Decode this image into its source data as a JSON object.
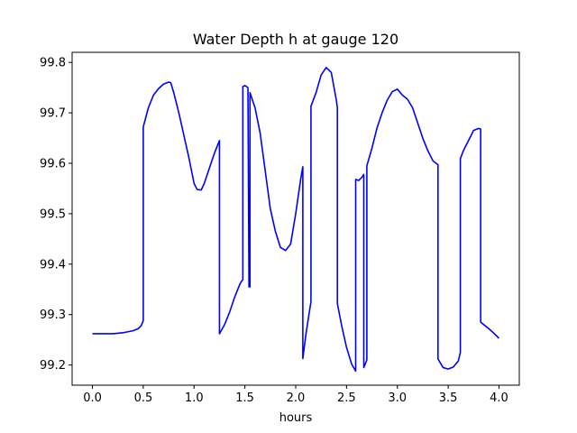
{
  "chart_data": {
    "type": "line",
    "title": "Water Depth h at gauge 120",
    "xlabel": "hours",
    "ylabel": "",
    "xlim": [
      -0.2,
      4.2
    ],
    "ylim": [
      99.16,
      99.82
    ],
    "xticks": [
      0.0,
      0.5,
      1.0,
      1.5,
      2.0,
      2.5,
      3.0,
      3.5,
      4.0
    ],
    "xtick_labels": [
      "0.0",
      "0.5",
      "1.0",
      "1.5",
      "2.0",
      "2.5",
      "3.0",
      "3.5",
      "4.0"
    ],
    "yticks": [
      99.2,
      99.3,
      99.4,
      99.5,
      99.6,
      99.7,
      99.8
    ],
    "ytick_labels": [
      "99.2",
      "99.3",
      "99.4",
      "99.5",
      "99.6",
      "99.7",
      "99.8"
    ],
    "grid": false,
    "series": [
      {
        "color": "#0000ff",
        "x": [
          0.0,
          0.1,
          0.2,
          0.3,
          0.4,
          0.45,
          0.48,
          0.5,
          0.5,
          0.55,
          0.6,
          0.65,
          0.7,
          0.75,
          0.77,
          0.8,
          0.85,
          0.9,
          0.95,
          1.0,
          1.03,
          1.07,
          1.1,
          1.15,
          1.2,
          1.25,
          1.25,
          1.3,
          1.35,
          1.4,
          1.45,
          1.47,
          1.48,
          1.48,
          1.5,
          1.51,
          1.53,
          1.54,
          1.54,
          1.55,
          1.55,
          1.6,
          1.65,
          1.7,
          1.75,
          1.8,
          1.85,
          1.9,
          1.95,
          2.0,
          2.05,
          2.07,
          2.07,
          2.1,
          2.13,
          2.15,
          2.15,
          2.2,
          2.25,
          2.3,
          2.35,
          2.4,
          2.41,
          2.41,
          2.45,
          2.5,
          2.55,
          2.59,
          2.59,
          2.62,
          2.65,
          2.67,
          2.67,
          2.7,
          2.7,
          2.75,
          2.8,
          2.85,
          2.9,
          2.95,
          3.0,
          3.05,
          3.1,
          3.15,
          3.2,
          3.25,
          3.3,
          3.35,
          3.4,
          3.4,
          3.45,
          3.5,
          3.55,
          3.6,
          3.62,
          3.62,
          3.65,
          3.7,
          3.75,
          3.8,
          3.82,
          3.82,
          3.85,
          3.9,
          3.95,
          4.0
        ],
        "y": [
          99.262,
          99.262,
          99.262,
          99.264,
          99.268,
          99.272,
          99.278,
          99.288,
          99.672,
          99.71,
          99.735,
          99.748,
          99.757,
          99.761,
          99.76,
          99.74,
          99.7,
          99.655,
          99.61,
          99.56,
          99.548,
          99.547,
          99.56,
          99.59,
          99.62,
          99.645,
          99.262,
          99.28,
          99.305,
          99.335,
          99.36,
          99.367,
          99.369,
          99.752,
          99.754,
          99.753,
          99.75,
          99.365,
          99.355,
          99.355,
          99.74,
          99.71,
          99.66,
          99.585,
          99.51,
          99.465,
          99.433,
          99.427,
          99.44,
          99.5,
          99.57,
          99.593,
          99.213,
          99.26,
          99.3,
          99.325,
          99.713,
          99.74,
          99.775,
          99.79,
          99.78,
          99.725,
          99.71,
          99.322,
          99.28,
          99.235,
          99.202,
          99.188,
          99.568,
          99.566,
          99.572,
          99.578,
          99.195,
          99.21,
          99.595,
          99.63,
          99.67,
          99.7,
          99.725,
          99.742,
          99.747,
          99.735,
          99.727,
          99.71,
          99.68,
          99.65,
          99.625,
          99.605,
          99.597,
          99.212,
          99.195,
          99.192,
          99.196,
          99.208,
          99.225,
          99.609,
          99.625,
          99.645,
          99.665,
          99.669,
          99.668,
          99.285,
          99.28,
          99.272,
          99.263,
          99.253
        ]
      }
    ]
  }
}
